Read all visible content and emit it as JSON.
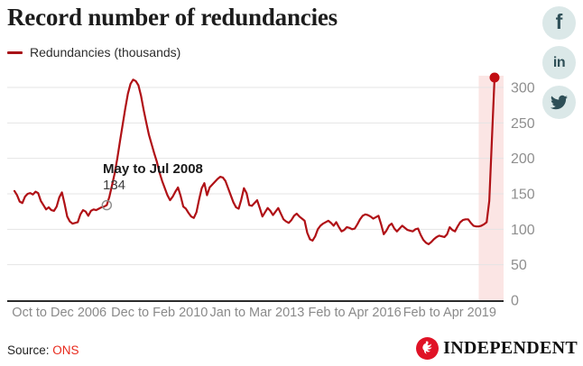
{
  "header": {
    "title": "Record number of redundancies"
  },
  "legend": {
    "label": "Redundancies (thousands)",
    "color": "#a81217"
  },
  "social": {
    "circle_color": "#dbe8e8",
    "glyph_color": "#2e4f57",
    "facebook_glyph": "f",
    "linkedin_glyph": "in",
    "items": [
      "facebook",
      "linkedin",
      "twitter"
    ]
  },
  "footer": {
    "source_label": "Source:",
    "source_value": "ONS",
    "source_value_color": "#e8291c",
    "brand": "INDEPENDENT",
    "brand_red": "#e01226"
  },
  "chart_data": {
    "type": "line",
    "title": "Record number of redundancies",
    "xlabel": "",
    "ylabel": "Redundancies (thousands)",
    "ylim": [
      0,
      320
    ],
    "grid": "horizontal",
    "y_axis_side": "right",
    "y_ticks": [
      0,
      50,
      100,
      150,
      200,
      250,
      300
    ],
    "x_tick_labels": [
      "Oct to Dec 2006",
      "Dec to Feb 2010",
      "Jan to Mar 2013",
      "Feb to Apr 2016",
      "Feb to Apr 2019"
    ],
    "x_tick_indices": [
      17,
      55,
      92,
      129,
      165
    ],
    "annotation": {
      "index": 35,
      "title": "May to Jul 2008",
      "value": "134"
    },
    "end_marker": {
      "index": 182,
      "value": 314,
      "color": "#c20d12"
    },
    "highlight_band": {
      "from_index": 176,
      "color": "#fbe5e4"
    },
    "series": [
      {
        "name": "Redundancies (thousands)",
        "color": "#b01116",
        "values": [
          154,
          148,
          139,
          137,
          146,
          150,
          151,
          149,
          153,
          151,
          140,
          134,
          128,
          131,
          127,
          126,
          132,
          145,
          152,
          136,
          118,
          111,
          108,
          109,
          110,
          121,
          127,
          125,
          119,
          126,
          128,
          127,
          129,
          131,
          132,
          134,
          146,
          162,
          179,
          200,
          224,
          247,
          270,
          291,
          305,
          311,
          309,
          303,
          288,
          268,
          250,
          233,
          220,
          207,
          195,
          180,
          168,
          158,
          148,
          141,
          146,
          153,
          159,
          147,
          132,
          129,
          123,
          118,
          116,
          124,
          142,
          158,
          165,
          148,
          159,
          163,
          167,
          171,
          174,
          173,
          168,
          158,
          148,
          138,
          131,
          129,
          142,
          158,
          151,
          134,
          133,
          137,
          141,
          130,
          118,
          124,
          130,
          126,
          120,
          125,
          130,
          122,
          114,
          111,
          109,
          113,
          119,
          122,
          118,
          115,
          112,
          95,
          86,
          84,
          90,
          100,
          105,
          108,
          110,
          112,
          109,
          105,
          110,
          103,
          97,
          99,
          103,
          102,
          100,
          101,
          107,
          114,
          119,
          121,
          120,
          118,
          115,
          117,
          119,
          107,
          93,
          98,
          105,
          108,
          101,
          97,
          101,
          105,
          102,
          99,
          98,
          97,
          100,
          101,
          92,
          85,
          81,
          79,
          82,
          86,
          89,
          91,
          90,
          89,
          93,
          103,
          99,
          97,
          104,
          110,
          113,
          114,
          114,
          109,
          105,
          104,
          104,
          105,
          107,
          110,
          140,
          227,
          314
        ]
      }
    ]
  }
}
